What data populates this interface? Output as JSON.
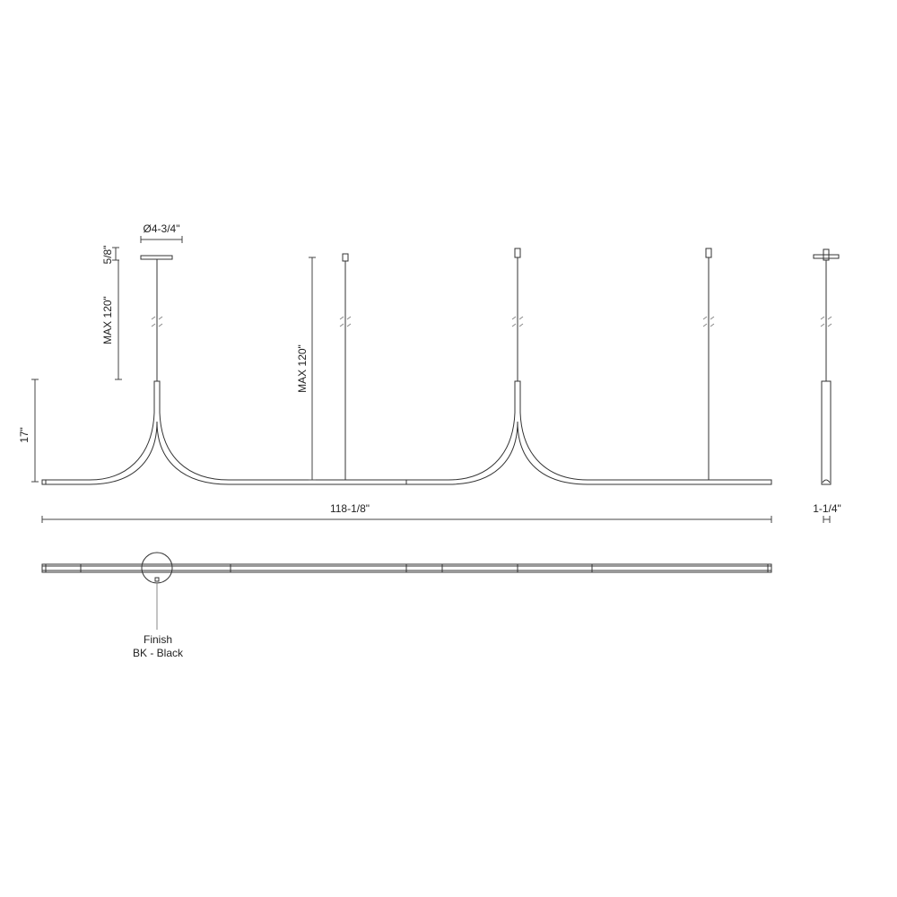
{
  "dimensions": {
    "canopy_diameter": "Ø4-3/4\"",
    "canopy_height": "5/8\"",
    "max_cable_left": "MAX 120\"",
    "max_cable_center": "MAX 120\"",
    "fixture_height": "17\"",
    "overall_length": "118-1/8\"",
    "tube_diameter": "1-1/4\""
  },
  "finish": {
    "label": "Finish",
    "value": "BK - Black"
  },
  "colors": {
    "line": "#333333",
    "background": "#ffffff"
  }
}
